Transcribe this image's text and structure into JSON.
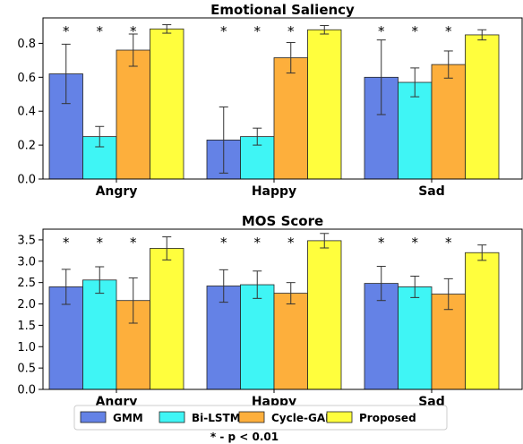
{
  "chart_data": [
    {
      "type": "bar",
      "title": "Emotional Saliency",
      "categories": [
        "Angry",
        "Happy",
        "Sad"
      ],
      "series": [
        {
          "name": "GMM",
          "values": [
            0.62,
            0.23,
            0.6
          ],
          "errors": [
            0.175,
            0.195,
            0.22
          ]
        },
        {
          "name": "Bi-LSTM",
          "values": [
            0.25,
            0.25,
            0.57
          ],
          "errors": [
            0.06,
            0.05,
            0.085
          ]
        },
        {
          "name": "Cycle-GAN",
          "values": [
            0.76,
            0.715,
            0.675
          ],
          "errors": [
            0.095,
            0.09,
            0.08
          ]
        },
        {
          "name": "Proposed",
          "values": [
            0.885,
            0.88,
            0.85
          ],
          "errors": [
            0.025,
            0.025,
            0.03
          ]
        }
      ],
      "significance": [
        [
          true,
          true,
          true
        ],
        [
          true,
          true,
          true
        ],
        [
          true,
          true,
          true
        ]
      ],
      "significance_marker": "*",
      "ylim": [
        0,
        0.95
      ],
      "yticks": [
        "0.0",
        "0.2",
        "0.4",
        "0.6",
        "0.8"
      ]
    },
    {
      "type": "bar",
      "title": "MOS Score",
      "categories": [
        "Angry",
        "Happy",
        "Sad"
      ],
      "series": [
        {
          "name": "GMM",
          "values": [
            2.4,
            2.42,
            2.48
          ],
          "errors": [
            0.41,
            0.38,
            0.4
          ]
        },
        {
          "name": "Bi-LSTM",
          "values": [
            2.56,
            2.45,
            2.4
          ],
          "errors": [
            0.31,
            0.32,
            0.25
          ]
        },
        {
          "name": "Cycle-GAN",
          "values": [
            2.08,
            2.25,
            2.23
          ],
          "errors": [
            0.53,
            0.25,
            0.36
          ]
        },
        {
          "name": "Proposed",
          "values": [
            3.3,
            3.48,
            3.2
          ],
          "errors": [
            0.27,
            0.17,
            0.18
          ]
        }
      ],
      "significance": [
        [
          true,
          true,
          true
        ],
        [
          true,
          true,
          true
        ],
        [
          true,
          true,
          true
        ]
      ],
      "significance_marker": "*",
      "ylim": [
        0,
        3.75
      ],
      "yticks": [
        "0.0",
        "0.5",
        "1.0",
        "1.5",
        "2.0",
        "2.5",
        "3.0",
        "3.5"
      ]
    }
  ],
  "legend": {
    "placement": "bottom",
    "items": [
      {
        "label": "GMM",
        "color": "#6482e6"
      },
      {
        "label": "Bi-LSTM",
        "color": "#3ff5f5"
      },
      {
        "label": "Cycle-GAN",
        "color": "#fdaf3c"
      },
      {
        "label": "Proposed",
        "color": "#fffe3d"
      }
    ]
  },
  "footnote": "* - p < 0.01"
}
